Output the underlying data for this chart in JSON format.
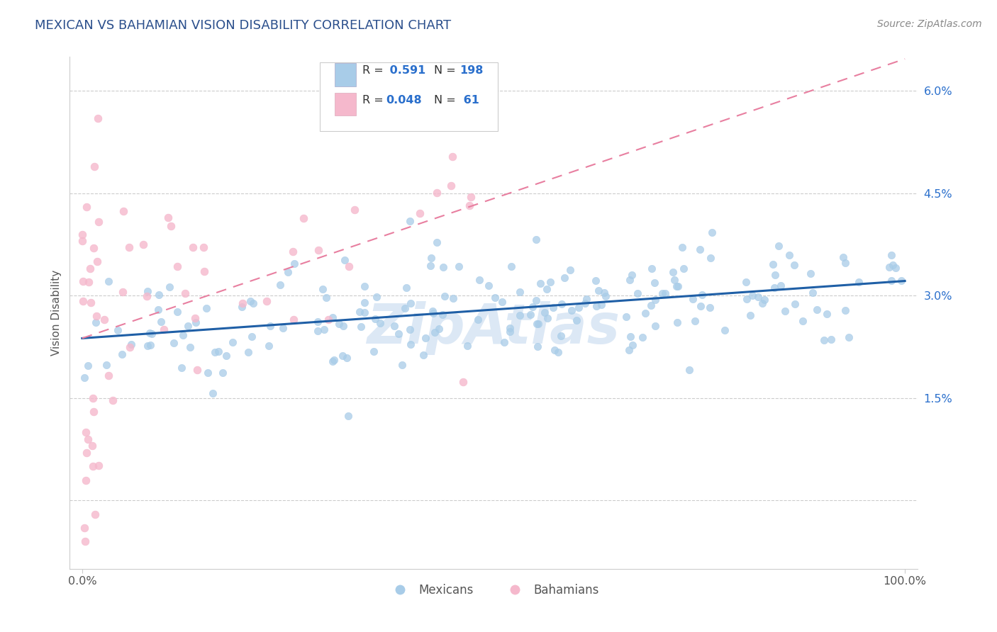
{
  "title": "MEXICAN VS BAHAMIAN VISION DISABILITY CORRELATION CHART",
  "source": "Source: ZipAtlas.com",
  "ylabel": "Vision Disability",
  "mexican_color": "#a8cce8",
  "mexican_line_color": "#1f5fa6",
  "bahamian_color": "#f5b8cc",
  "bahamian_line_color": "#e87fa0",
  "mexican_R": 0.591,
  "mexican_N": 198,
  "bahamian_R": 0.048,
  "bahamian_N": 61,
  "grid_color": "#cccccc",
  "title_color": "#2b4f8c",
  "legend_R_color": "#2a6fcc",
  "yaxis_color": "#2a6fcc",
  "background_color": "#ffffff",
  "ytick_vals": [
    0.0,
    1.5,
    3.0,
    4.5,
    6.0
  ],
  "ytick_labels": [
    "",
    "1.5%",
    "3.0%",
    "4.5%",
    "6.0%"
  ],
  "ylim_low": -1.0,
  "ylim_high": 6.5,
  "xlim_low": -1.5,
  "xlim_high": 101.5
}
